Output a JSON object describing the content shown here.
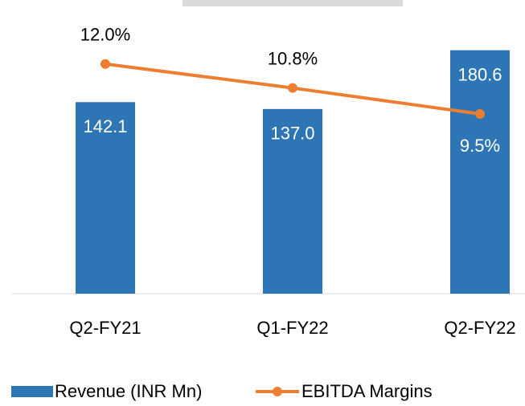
{
  "chart_data": {
    "type": "bar-line",
    "categories": [
      "Q2-FY21",
      "Q1-FY22",
      "Q2-FY22"
    ],
    "series": [
      {
        "name": "Revenue (INR Mn)",
        "color": "#2e75b6",
        "type": "bar",
        "values": [
          142.1,
          137.0,
          180.6
        ],
        "value_labels": [
          "142.1",
          "137.0",
          "180.6"
        ]
      },
      {
        "name": "EBITDA Margins",
        "color": "#ed7d31",
        "type": "line",
        "axis": "y2",
        "values": [
          12.0,
          10.8,
          9.5
        ],
        "value_labels": [
          "12.0%",
          "10.8%",
          "9.5%"
        ]
      }
    ],
    "ylim": [
      0,
      200
    ],
    "y2lim": [
      0.5,
      14
    ],
    "legend": "bottom"
  }
}
